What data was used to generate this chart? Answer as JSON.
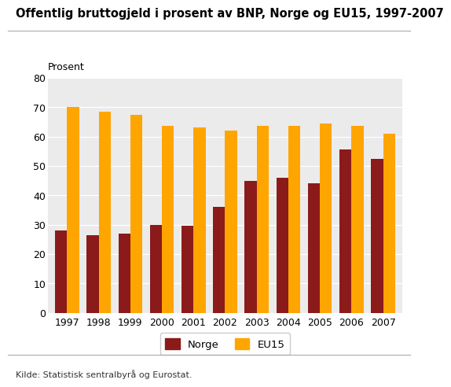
{
  "title": "Offentlig bruttogjeld i prosent av BNP, Norge og EU15, 1997-2007",
  "ylabel": "Prosent",
  "source": "Kilde: Statistisk sentralbyrå og Eurostat.",
  "years": [
    1997,
    1998,
    1999,
    2000,
    2001,
    2002,
    2003,
    2004,
    2005,
    2006,
    2007
  ],
  "norge": [
    28,
    26.5,
    27,
    30,
    29.5,
    36,
    45,
    46,
    44,
    55.5,
    52.5
  ],
  "eu15": [
    70,
    68.5,
    67.5,
    63.5,
    63,
    62,
    63.5,
    63.5,
    64.5,
    63.5,
    61
  ],
  "color_norge": "#8B1A1A",
  "color_eu15": "#FFA500",
  "ylim": [
    0,
    80
  ],
  "yticks": [
    0,
    10,
    20,
    30,
    40,
    50,
    60,
    70,
    80
  ],
  "bar_width": 0.38,
  "background_color": "#ffffff",
  "plot_bg_color": "#ffffff",
  "title_fontsize": 10.5,
  "tick_fontsize": 9,
  "source_fontsize": 8,
  "legend_fontsize": 9.5
}
